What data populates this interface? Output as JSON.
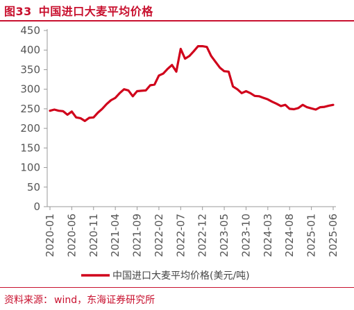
{
  "figure": {
    "label": "图33",
    "title": "中国进口大麦平均价格"
  },
  "source": {
    "label": "资料来源：",
    "text": "wind，东海证券研究所"
  },
  "colors": {
    "accent": "#c8102e",
    "line": "#d0021b",
    "axis": "#999999",
    "text": "#555555"
  },
  "chart_data": {
    "type": "line",
    "title": "中国进口大麦平均价格",
    "xlabel": "",
    "ylabel": "",
    "ylim": [
      0,
      450
    ],
    "yticks": [
      0,
      50,
      100,
      150,
      200,
      250,
      300,
      350,
      400,
      450
    ],
    "xticks": [
      "2020-01",
      "2020-06",
      "2020-11",
      "2021-04",
      "2021-09",
      "2022-02",
      "2022-07",
      "2022-12",
      "2023-05",
      "2023-10",
      "2024-03",
      "2024-08",
      "2025-01",
      "2025-06"
    ],
    "grid": false,
    "legend": "bottom",
    "series": [
      {
        "name": "中国进口大麦平均价格(美元/吨)",
        "x": [
          "2020-01",
          "2020-02",
          "2020-03",
          "2020-04",
          "2020-05",
          "2020-06",
          "2020-07",
          "2020-08",
          "2020-09",
          "2020-10",
          "2020-11",
          "2020-12",
          "2021-01",
          "2021-02",
          "2021-03",
          "2021-04",
          "2021-05",
          "2021-06",
          "2021-07",
          "2021-08",
          "2021-09",
          "2021-10",
          "2021-11",
          "2021-12",
          "2022-01",
          "2022-02",
          "2022-03",
          "2022-04",
          "2022-05",
          "2022-06",
          "2022-07",
          "2022-08",
          "2022-09",
          "2022-10",
          "2022-11",
          "2022-12",
          "2023-01",
          "2023-02",
          "2023-03",
          "2023-04",
          "2023-05",
          "2023-06",
          "2023-07",
          "2023-08",
          "2023-09",
          "2023-10",
          "2023-11",
          "2023-12",
          "2024-01",
          "2024-02",
          "2024-03",
          "2024-04",
          "2024-05",
          "2024-06",
          "2024-07",
          "2024-08",
          "2024-09",
          "2024-10",
          "2024-11",
          "2024-12",
          "2025-01",
          "2025-02",
          "2025-03",
          "2025-04",
          "2025-05",
          "2025-06"
        ],
        "values": [
          245,
          248,
          245,
          244,
          235,
          243,
          228,
          226,
          219,
          227,
          228,
          240,
          250,
          262,
          272,
          278,
          290,
          300,
          297,
          282,
          295,
          296,
          297,
          310,
          312,
          335,
          340,
          352,
          362,
          345,
          403,
          378,
          385,
          397,
          410,
          410,
          408,
          385,
          370,
          355,
          346,
          345,
          307,
          300,
          290,
          295,
          290,
          283,
          282,
          278,
          274,
          268,
          263,
          257,
          260,
          250,
          249,
          252,
          260,
          254,
          251,
          248,
          254,
          255,
          258,
          260
        ]
      }
    ]
  }
}
